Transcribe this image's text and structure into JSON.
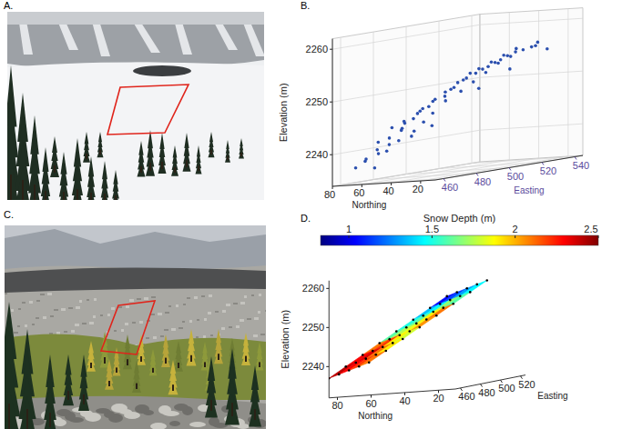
{
  "panel_labels": [
    "A.",
    "B.",
    "C.",
    "D."
  ],
  "chart_data": [
    {
      "type": "scatter3d",
      "x_label": "Easting",
      "y_label": "Northing",
      "z_label": "Elevation (m)",
      "x": [
        462,
        466,
        470,
        475,
        463,
        468,
        478,
        472,
        482,
        465,
        470,
        480,
        476,
        486,
        468,
        482,
        474,
        490,
        480,
        492,
        470,
        486,
        478,
        498,
        484,
        494,
        476,
        502,
        488,
        496,
        480,
        506,
        492,
        500,
        486,
        510,
        496,
        504,
        490,
        514,
        500,
        508,
        494,
        518,
        504,
        512,
        498,
        522,
        508,
        516,
        502,
        526,
        512,
        530,
        520,
        534,
        488,
        496,
        512,
        522
      ],
      "y": [
        72,
        70,
        68,
        71,
        66,
        64,
        67,
        62,
        65,
        60,
        58,
        61,
        56,
        59,
        54,
        55,
        52,
        57,
        50,
        53,
        48,
        49,
        46,
        51,
        44,
        47,
        42,
        45,
        40,
        43,
        38,
        41,
        36,
        39,
        34,
        37,
        32,
        35,
        30,
        33,
        28,
        31,
        26,
        29,
        24,
        27,
        22,
        25,
        20,
        23,
        18,
        21,
        19,
        24,
        17,
        22,
        63,
        58,
        44,
        34
      ],
      "z": [
        2237,
        2238,
        2236.5,
        2239,
        2238.5,
        2240,
        2240.5,
        2239.5,
        2241,
        2241.5,
        2242,
        2243,
        2243.5,
        2242.5,
        2244,
        2245,
        2244.5,
        2244,
        2246,
        2245.5,
        2245,
        2247,
        2246.5,
        2247.5,
        2248,
        2248.5,
        2247,
        2249,
        2249.5,
        2250,
        2248.5,
        2250.5,
        2251,
        2251.5,
        2250,
        2252,
        2252.5,
        2253,
        2251.5,
        2253.5,
        2253,
        2254,
        2252.5,
        2254.5,
        2254,
        2255,
        2253.5,
        2255.5,
        2255,
        2256,
        2254.5,
        2256,
        2255.5,
        2256.5,
        2256,
        2255,
        2241.5,
        2243,
        2249,
        2252
      ],
      "xlim": [
        455,
        545
      ],
      "ylim": [
        10,
        80
      ],
      "zlim": [
        2234,
        2262
      ],
      "xticks": [
        460,
        480,
        500,
        520,
        540
      ],
      "yticks": [
        20,
        40,
        60,
        80
      ],
      "zticks": [
        2240,
        2250,
        2260
      ],
      "color": "#2b4fae",
      "marker": "circle",
      "grid": true
    },
    {
      "type": "surface3d",
      "x_label": "Easting",
      "y_label": "Northing",
      "z_label": "Elevation (m)",
      "x": [
        455,
        465,
        475,
        485,
        495
      ],
      "y": [
        85,
        75,
        65,
        55,
        45,
        35,
        25,
        15
      ],
      "z": [
        [
          2237.0,
          2237.5,
          2238.0,
          2238.5,
          2239.0
        ],
        [
          2239.7,
          2240.2,
          2240.7,
          2241.2,
          2241.7
        ],
        [
          2242.4,
          2242.9,
          2243.4,
          2243.9,
          2244.4
        ],
        [
          2245.1,
          2245.6,
          2246.1,
          2246.6,
          2247.1
        ],
        [
          2247.8,
          2248.3,
          2248.8,
          2249.3,
          2249.8
        ],
        [
          2250.5,
          2251.0,
          2251.5,
          2252.0,
          2252.5
        ],
        [
          2253.2,
          2253.7,
          2254.2,
          2254.7,
          2255.2
        ],
        [
          2255.9,
          2256.4,
          2256.9,
          2257.4,
          2257.9
        ]
      ],
      "snow_depth": [
        [
          2.4,
          2.3,
          2.2,
          2.1
        ],
        [
          2.3,
          2.35,
          2.1,
          1.9
        ],
        [
          2.1,
          2.2,
          1.9,
          1.8
        ],
        [
          1.6,
          1.75,
          1.85,
          2.05
        ],
        [
          1.5,
          1.6,
          1.9,
          2.1
        ],
        [
          1.35,
          1.45,
          1.7,
          1.6
        ],
        [
          1.05,
          1.15,
          1.3,
          1.45
        ]
      ],
      "color_bar": {
        "title": "Snow Depth (m)",
        "range": [
          0.83,
          2.5
        ],
        "ticks": [
          1,
          1.5,
          2,
          2.5
        ]
      },
      "xlim": [
        455,
        525
      ],
      "ylim": [
        10,
        85
      ],
      "zlim": [
        2232,
        2262
      ],
      "xticks": [
        460,
        480,
        500,
        520
      ],
      "yticks": [
        20,
        40,
        60,
        80
      ],
      "zticks": [
        2240,
        2250,
        2260
      ],
      "marker": "circle",
      "grid": false
    }
  ]
}
